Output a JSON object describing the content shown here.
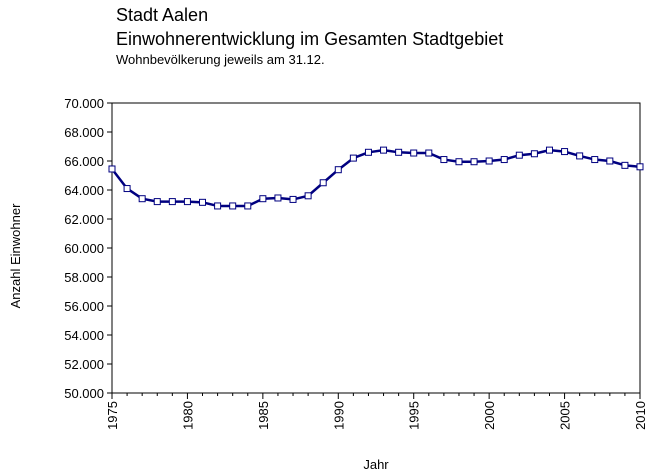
{
  "chart_data": {
    "type": "line",
    "title": "Stadt Aalen",
    "subtitle": "Einwohnerentwicklung im Gesamten Stadtgebiet",
    "note": "Wohnbevölkerung jeweils am 31.12.",
    "xlabel": "Jahr",
    "ylabel": "Anzahl Einwohner",
    "xlim": [
      1975,
      2010
    ],
    "ylim": [
      50000,
      70000
    ],
    "x_ticks": [
      "1975",
      "1980",
      "1985",
      "1990",
      "1995",
      "2000",
      "2005",
      "2010"
    ],
    "y_ticks": [
      "50.000",
      "52.000",
      "54.000",
      "56.000",
      "58.000",
      "60.000",
      "62.000",
      "64.000",
      "66.000",
      "68.000",
      "70.000"
    ],
    "grid": false,
    "legend": "none",
    "colors": {
      "line": "#000080",
      "marker_fill": "#ffffff",
      "marker_stroke": "#000080"
    },
    "series": [
      {
        "x": [
          1975,
          1976,
          1977,
          1978,
          1979,
          1980,
          1981,
          1982,
          1983,
          1984,
          1985,
          1986,
          1987,
          1988,
          1989,
          1990,
          1991,
          1992,
          1993,
          1994,
          1995,
          1996,
          1997,
          1998,
          1999,
          2000,
          2001,
          2002,
          2003,
          2004,
          2005,
          2006,
          2007,
          2008,
          2009,
          2010
        ],
        "values": [
          65450,
          64100,
          63400,
          63200,
          63200,
          63200,
          63150,
          62900,
          62900,
          62900,
          63400,
          63450,
          63350,
          63600,
          64500,
          65400,
          66200,
          66600,
          66750,
          66600,
          66550,
          66550,
          66100,
          65950,
          65950,
          66000,
          66100,
          66400,
          66500,
          66750,
          66650,
          66350,
          66100,
          66000,
          65700,
          65600
        ]
      }
    ]
  }
}
